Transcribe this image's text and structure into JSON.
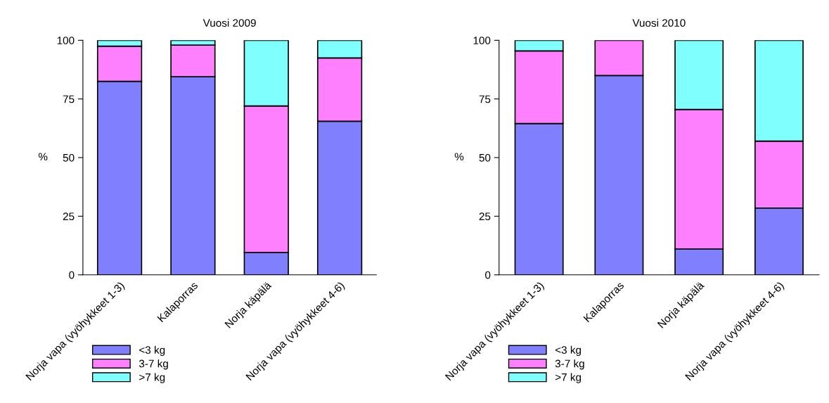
{
  "chart_data": [
    {
      "type": "bar",
      "title": "Vuosi 2009",
      "ylabel": "%",
      "stacked": true,
      "categories": [
        "Norja vapa (vyöhykkeet 1-3)",
        "Kalaporras",
        "Norja käpälä",
        "Norja vapa (vyöhykkeet 4-6)"
      ],
      "series": [
        {
          "name": "<3 kg",
          "color": "#8080ff",
          "values": [
            82.5,
            84.5,
            9.5,
            65.5
          ]
        },
        {
          "name": "3-7 kg",
          "color": "#ff80ff",
          "values": [
            15,
            13.5,
            62.5,
            27
          ]
        },
        {
          "name": ">7 kg",
          "color": "#80ffff",
          "values": [
            2.5,
            2,
            28,
            7.5
          ]
        }
      ],
      "ylim": [
        0,
        100
      ],
      "yticks": [
        0,
        25,
        50,
        75,
        100
      ],
      "grid": false,
      "legend": "bottom"
    },
    {
      "type": "bar",
      "title": "Vuosi 2010",
      "ylabel": "%",
      "stacked": true,
      "categories": [
        "Norja vapa (vyöhykkeet 1-3)",
        "Kalaporras",
        "Norja käpälä",
        "Norja vapa (vyöhykkeet 4-6)"
      ],
      "series": [
        {
          "name": "<3 kg",
          "color": "#8080ff",
          "values": [
            64.5,
            85,
            11,
            28.5
          ]
        },
        {
          "name": "3-7 kg",
          "color": "#ff80ff",
          "values": [
            31,
            15,
            59.5,
            28.5
          ]
        },
        {
          "name": ">7 kg",
          "color": "#80ffff",
          "values": [
            4.5,
            0,
            29.5,
            43
          ]
        }
      ],
      "ylim": [
        0,
        100
      ],
      "yticks": [
        0,
        25,
        50,
        75,
        100
      ],
      "grid": false,
      "legend": "bottom"
    }
  ]
}
